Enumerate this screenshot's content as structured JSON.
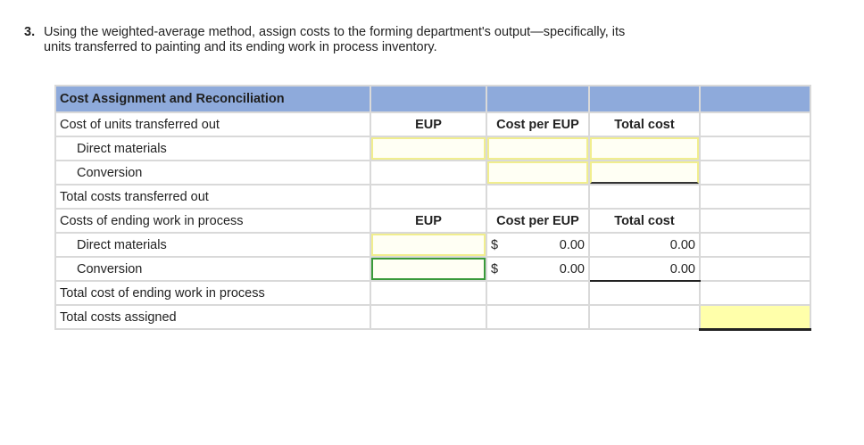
{
  "question": {
    "number": "3.",
    "line1": "Using the weighted-average method, assign costs to the forming department's output—specifically, its",
    "line2": "units transferred to painting and its ending work in process inventory."
  },
  "table": {
    "title": "Cost Assignment and Reconciliation",
    "transferred": {
      "label": "Cost of units transferred out",
      "col_eup": "EUP",
      "col_cost_per_eup": "Cost per EUP",
      "col_total_cost": "Total cost",
      "direct_materials": "Direct materials",
      "conversion": "Conversion",
      "total_label": "Total costs transferred out"
    },
    "ending_wip": {
      "label": "Costs of ending work in process",
      "col_eup": "EUP",
      "col_cost_per_eup": "Cost per EUP",
      "col_total_cost": "Total cost",
      "direct_materials": "Direct materials",
      "dm_currency": "$",
      "dm_cost_per_eup": "0.00",
      "dm_total_cost": "0.00",
      "conversion": "Conversion",
      "conv_currency": "$",
      "conv_cost_per_eup": "0.00",
      "conv_total_cost": "0.00",
      "total_label": "Total cost of ending work in process"
    },
    "total_assigned_label": "Total costs assigned"
  }
}
